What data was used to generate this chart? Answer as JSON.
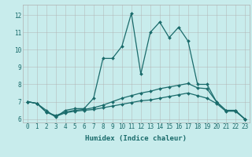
{
  "xlabel": "Humidex (Indice chaleur)",
  "bg_color": "#c8ecec",
  "grid_color": "#b0b0b0",
  "line_color": "#1a6b6b",
  "xlim": [
    -0.5,
    23.5
  ],
  "ylim": [
    5.8,
    12.6
  ],
  "yticks": [
    6,
    7,
    8,
    9,
    10,
    11,
    12
  ],
  "xticks": [
    0,
    1,
    2,
    3,
    4,
    5,
    6,
    7,
    8,
    9,
    10,
    11,
    12,
    13,
    14,
    15,
    16,
    17,
    18,
    19,
    20,
    21,
    22,
    23
  ],
  "line1_x": [
    0,
    1,
    2,
    3,
    4,
    5,
    6,
    7,
    8,
    9,
    10,
    11,
    12,
    13,
    14,
    15,
    16,
    17,
    18,
    19,
    20,
    21,
    22,
    23
  ],
  "line1_y": [
    7.0,
    6.9,
    6.5,
    6.1,
    6.5,
    6.6,
    6.6,
    7.2,
    9.5,
    9.5,
    10.2,
    12.1,
    8.6,
    11.0,
    11.6,
    10.7,
    11.3,
    10.5,
    8.0,
    8.0,
    7.0,
    6.5,
    6.5,
    6.0
  ],
  "line2_x": [
    0,
    1,
    2,
    3,
    4,
    5,
    6,
    7,
    8,
    9,
    10,
    11,
    12,
    13,
    14,
    15,
    16,
    17,
    18,
    19,
    20,
    21,
    22,
    23
  ],
  "line2_y": [
    7.0,
    6.9,
    6.4,
    6.2,
    6.4,
    6.5,
    6.55,
    6.65,
    6.8,
    7.0,
    7.2,
    7.35,
    7.5,
    7.6,
    7.75,
    7.85,
    7.95,
    8.05,
    7.8,
    7.75,
    7.0,
    6.5,
    6.5,
    6.0
  ],
  "line3_x": [
    0,
    1,
    2,
    3,
    4,
    5,
    6,
    7,
    8,
    9,
    10,
    11,
    12,
    13,
    14,
    15,
    16,
    17,
    18,
    19,
    20,
    21,
    22,
    23
  ],
  "line3_y": [
    7.0,
    6.9,
    6.4,
    6.15,
    6.35,
    6.45,
    6.5,
    6.55,
    6.65,
    6.75,
    6.85,
    6.95,
    7.05,
    7.1,
    7.2,
    7.3,
    7.4,
    7.5,
    7.35,
    7.2,
    6.9,
    6.45,
    6.45,
    6.0
  ],
  "font_color": "#1a6b6b",
  "font_size_label": 6.5,
  "font_size_tick": 5.5,
  "markersize": 2.0,
  "linewidth": 0.9
}
